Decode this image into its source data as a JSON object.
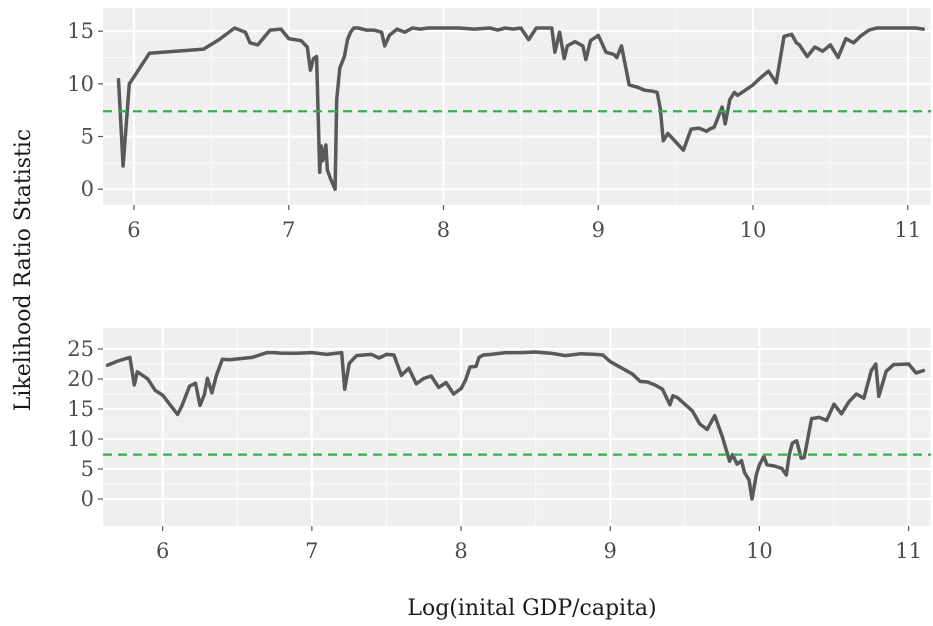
{
  "chart_data": {
    "type": "line",
    "shared_ylabel": "Likelihood Ratio Statistic",
    "shared_xlabel": "Log(inital GDP/capita)",
    "line_color": "#595959",
    "threshold_color": "#22bb44",
    "panel_background": "#efefef",
    "grid": true,
    "panels": [
      {
        "xlim": [
          5.8,
          11.15
        ],
        "ylim": [
          -1.5,
          17.2
        ],
        "xticks": [
          6,
          7,
          8,
          9,
          10,
          11
        ],
        "xtick_labels": [
          "6",
          "7",
          "8",
          "9",
          "10",
          "11"
        ],
        "yticks": [
          0,
          5,
          10,
          15
        ],
        "ytick_labels": [
          "0",
          "5",
          "10",
          "15"
        ],
        "threshold": 7.4,
        "series": [
          {
            "x": [
              5.9,
              5.93,
              5.97,
              6.1,
              6.45,
              6.55,
              6.65,
              6.72,
              6.75,
              6.8,
              6.88,
              6.95,
              7.0,
              7.08,
              7.12,
              7.14,
              7.16,
              7.18,
              7.2,
              7.21,
              7.22,
              7.24,
              7.25,
              7.27,
              7.3,
              7.31,
              7.33,
              7.36,
              7.38,
              7.4,
              7.42,
              7.45,
              7.5,
              7.55,
              7.6,
              7.62,
              7.65,
              7.7,
              7.75,
              7.8,
              7.85,
              7.9,
              8.0,
              8.1,
              8.2,
              8.3,
              8.35,
              8.4,
              8.45,
              8.5,
              8.55,
              8.6,
              8.65,
              8.7,
              8.72,
              8.75,
              8.78,
              8.8,
              8.85,
              8.9,
              8.92,
              8.95,
              9.0,
              9.05,
              9.1,
              9.12,
              9.15,
              9.2,
              9.25,
              9.3,
              9.35,
              9.38,
              9.4,
              9.42,
              9.45,
              9.5,
              9.55,
              9.6,
              9.65,
              9.7,
              9.72,
              9.75,
              9.8,
              9.82,
              9.85,
              9.88,
              9.9,
              9.95,
              10.0,
              10.05,
              10.1,
              10.15,
              10.2,
              10.25,
              10.28,
              10.3,
              10.35,
              10.4,
              10.45,
              10.5,
              10.55,
              10.6,
              10.65,
              10.7,
              10.75,
              10.8,
              10.9,
              11.0,
              11.05,
              11.1
            ],
            "y": [
              10.4,
              2.2,
              10.0,
              12.9,
              13.3,
              14.2,
              15.3,
              14.9,
              13.9,
              13.7,
              15.1,
              15.2,
              14.3,
              14.1,
              13.5,
              11.3,
              12.4,
              12.6,
              1.6,
              4.1,
              2.7,
              4.2,
              1.8,
              1.0,
              0.0,
              8.5,
              11.5,
              12.6,
              14.2,
              14.9,
              15.3,
              15.3,
              15.1,
              15.1,
              14.9,
              13.6,
              14.6,
              15.2,
              14.9,
              15.3,
              15.2,
              15.3,
              15.3,
              15.3,
              15.2,
              15.3,
              15.1,
              15.3,
              15.2,
              15.3,
              14.2,
              15.3,
              15.3,
              15.3,
              13.0,
              14.9,
              12.4,
              13.6,
              14.0,
              13.6,
              12.3,
              14.1,
              14.6,
              13.0,
              12.8,
              12.5,
              13.6,
              9.9,
              9.7,
              9.4,
              9.3,
              9.2,
              7.7,
              4.6,
              5.3,
              4.5,
              3.7,
              5.7,
              5.8,
              5.5,
              5.7,
              5.9,
              7.8,
              6.2,
              8.5,
              9.2,
              8.9,
              9.4,
              9.9,
              10.6,
              11.2,
              10.1,
              14.5,
              14.7,
              13.9,
              13.7,
              12.6,
              13.5,
              13.1,
              13.7,
              12.5,
              14.3,
              13.9,
              14.6,
              15.1,
              15.3,
              15.3,
              15.3,
              15.3,
              15.2
            ]
          }
        ]
      },
      {
        "xlim": [
          5.6,
          11.15
        ],
        "ylim": [
          -4.5,
          28.5
        ],
        "xticks": [
          6,
          7,
          8,
          9,
          10,
          11
        ],
        "xtick_labels": [
          "6",
          "7",
          "8",
          "9",
          "10",
          "11"
        ],
        "yticks": [
          0,
          5,
          10,
          15,
          20,
          25
        ],
        "ytick_labels": [
          "0",
          "5",
          "10",
          "15",
          "20",
          "25"
        ],
        "threshold": 7.4,
        "series": [
          {
            "x": [
              5.63,
              5.7,
              5.78,
              5.81,
              5.83,
              5.86,
              5.9,
              5.95,
              6.0,
              6.05,
              6.1,
              6.13,
              6.18,
              6.22,
              6.25,
              6.28,
              6.3,
              6.33,
              6.36,
              6.4,
              6.45,
              6.6,
              6.7,
              6.75,
              6.8,
              6.9,
              7.0,
              7.1,
              7.2,
              7.22,
              7.25,
              7.3,
              7.35,
              7.4,
              7.45,
              7.5,
              7.55,
              7.6,
              7.65,
              7.7,
              7.75,
              7.8,
              7.85,
              7.9,
              7.95,
              8.0,
              8.03,
              8.06,
              8.1,
              8.12,
              8.15,
              8.2,
              8.3,
              8.4,
              8.5,
              8.6,
              8.7,
              8.8,
              8.9,
              8.95,
              9.0,
              9.05,
              9.1,
              9.15,
              9.2,
              9.25,
              9.3,
              9.35,
              9.4,
              9.42,
              9.45,
              9.5,
              9.55,
              9.6,
              9.65,
              9.7,
              9.75,
              9.78,
              9.8,
              9.82,
              9.85,
              9.88,
              9.9,
              9.93,
              9.95,
              9.98,
              10.0,
              10.03,
              10.05,
              10.1,
              10.15,
              10.18,
              10.2,
              10.22,
              10.25,
              10.28,
              10.3,
              10.35,
              10.4,
              10.45,
              10.5,
              10.55,
              10.6,
              10.65,
              10.7,
              10.75,
              10.78,
              10.8,
              10.85,
              10.9,
              11.0,
              11.05,
              11.1
            ],
            "y": [
              22.3,
              23.0,
              23.6,
              19.0,
              21.2,
              20.7,
              20.0,
              18.1,
              17.3,
              15.7,
              14.1,
              15.6,
              18.8,
              19.3,
              15.6,
              17.4,
              20.1,
              17.7,
              20.6,
              23.3,
              23.2,
              23.6,
              24.4,
              24.4,
              24.3,
              24.3,
              24.4,
              24.1,
              24.4,
              18.3,
              22.6,
              23.9,
              24.0,
              24.1,
              23.5,
              24.1,
              24.0,
              20.6,
              21.8,
              19.2,
              20.1,
              20.5,
              18.6,
              19.4,
              17.5,
              18.4,
              19.8,
              22.0,
              22.1,
              23.6,
              24.0,
              24.1,
              24.4,
              24.4,
              24.5,
              24.3,
              23.9,
              24.2,
              24.1,
              24.0,
              22.9,
              22.2,
              21.5,
              20.8,
              19.6,
              19.5,
              19.0,
              18.3,
              15.7,
              17.2,
              16.9,
              15.8,
              14.7,
              12.5,
              11.6,
              13.9,
              10.5,
              8.0,
              6.3,
              7.4,
              5.8,
              6.4,
              4.4,
              3.2,
              0.0,
              4.1,
              5.7,
              7.1,
              5.7,
              5.5,
              5.1,
              4.0,
              7.4,
              9.3,
              9.7,
              6.8,
              6.9,
              13.4,
              13.6,
              13.1,
              15.8,
              14.2,
              16.2,
              17.5,
              16.8,
              21.4,
              22.5,
              17.1,
              21.3,
              22.4,
              22.5,
              21.0,
              21.4
            ]
          }
        ]
      }
    ]
  }
}
